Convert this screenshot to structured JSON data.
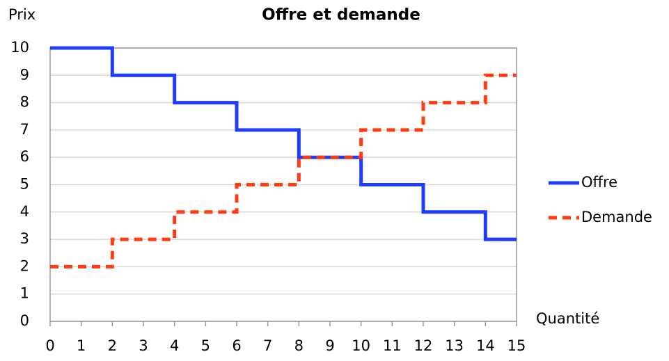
{
  "chart_data": {
    "type": "line",
    "step": "post",
    "title": "Offre et demande",
    "y_label": "Prix",
    "x_label": "Quantité",
    "x": [
      0,
      1,
      2,
      3,
      4,
      5,
      6,
      7,
      8,
      9,
      10,
      11,
      12,
      13,
      14,
      15
    ],
    "series": [
      {
        "name": "Offre",
        "color": "#1f3dff",
        "line_style": "solid",
        "values": [
          10,
          10,
          9,
          9,
          8,
          8,
          7,
          7,
          6,
          6,
          5,
          5,
          4,
          4,
          3,
          3
        ]
      },
      {
        "name": "Demande",
        "color": "#ff3b14",
        "line_style": "dashed",
        "values": [
          2,
          2,
          3,
          3,
          4,
          4,
          5,
          5,
          6,
          6,
          7,
          7,
          8,
          8,
          9,
          9
        ]
      }
    ],
    "xlim": [
      0,
      15
    ],
    "xticks": [
      0,
      1,
      2,
      3,
      4,
      5,
      6,
      7,
      8,
      9,
      10,
      11,
      12,
      13,
      14,
      15
    ],
    "ylim": [
      0,
      10
    ],
    "yticks": [
      0,
      1,
      2,
      3,
      4,
      5,
      6,
      7,
      8,
      9,
      10
    ],
    "grid": true,
    "legend": "right"
  }
}
